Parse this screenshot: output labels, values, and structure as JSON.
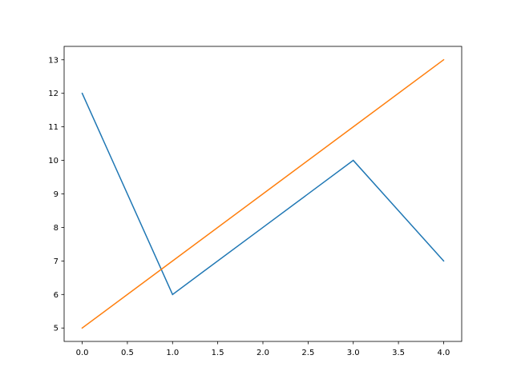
{
  "chart_data": {
    "type": "line",
    "title": "",
    "xlabel": "",
    "ylabel": "",
    "xlim": [
      -0.2,
      4.2
    ],
    "ylim": [
      4.6,
      13.4
    ],
    "grid": false,
    "xticks": [
      "0.0",
      "0.5",
      "1.0",
      "1.5",
      "2.0",
      "2.5",
      "3.0",
      "3.5",
      "4.0"
    ],
    "yticks": [
      "5",
      "6",
      "7",
      "8",
      "9",
      "10",
      "11",
      "12",
      "13"
    ],
    "series": [
      {
        "x": [
          0,
          1,
          2,
          3,
          4
        ],
        "values": [
          12,
          6,
          8,
          10,
          7
        ],
        "color": "#1f77b4"
      },
      {
        "x": [
          0,
          1,
          2,
          3,
          4
        ],
        "values": [
          5,
          7,
          9,
          11,
          13
        ],
        "color": "#ff7f0e"
      }
    ]
  }
}
